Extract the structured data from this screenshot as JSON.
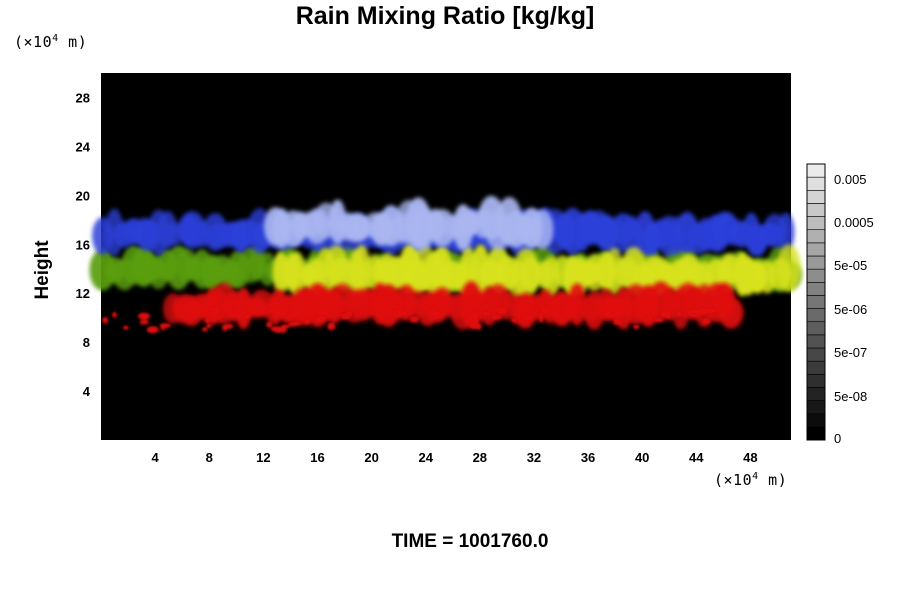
{
  "chart_data": {
    "type": "heatmap",
    "title": "Rain Mixing Ratio [kg/kg]",
    "ylabel": "Height",
    "xlabel": "",
    "x_unit": {
      "prefix": "(×10",
      "exp": "4",
      "suffix": " m)"
    },
    "y_unit": {
      "prefix": "(×10",
      "exp": "4",
      "suffix": " m)"
    },
    "xlim": [
      0,
      51
    ],
    "ylim": [
      0,
      30
    ],
    "x_ticks": [
      4,
      8,
      12,
      16,
      20,
      24,
      28,
      32,
      36,
      40,
      44,
      48
    ],
    "y_ticks": [
      4,
      8,
      12,
      16,
      20,
      24,
      28
    ],
    "colorbar": {
      "labels": [
        "0",
        "5e-08",
        "5e-07",
        "5e-06",
        "5e-05",
        "0.0005",
        "0.005"
      ],
      "levels": 21
    },
    "layers": [
      {
        "band": "upper",
        "color": "#a9b6f0",
        "x": [
          12.5,
          33
        ],
        "y": [
          15.5,
          20
        ]
      },
      {
        "band": "upper",
        "color": "#2b3fd8",
        "x": [
          0,
          51
        ],
        "y": [
          15,
          19
        ]
      },
      {
        "band": "middle",
        "color": "#d8e21c",
        "x": [
          13,
          51
        ],
        "y": [
          11.5,
          16
        ]
      },
      {
        "band": "middle",
        "color": "#5a9e10",
        "x": [
          0,
          51
        ],
        "y": [
          12,
          16
        ]
      },
      {
        "band": "lower",
        "color": "#e01010",
        "x": [
          5,
          47
        ],
        "y": [
          9,
          13
        ]
      }
    ],
    "annotation": "TIME = 1001760.0"
  },
  "colors": {
    "background": "#000000",
    "high_band": "#a9b6f0",
    "upper_band": "#2b3fd8",
    "middle_band": "#d8e21c",
    "green_band": "#5a9e10",
    "lower_band": "#e01010"
  }
}
